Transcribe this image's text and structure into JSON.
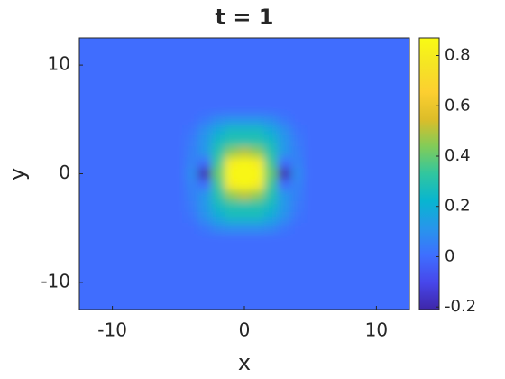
{
  "chart_data": {
    "type": "heatmap",
    "title": "t = 1",
    "x_label": "x",
    "y_label": "y",
    "x": [
      -11,
      -7,
      -5,
      -4,
      -3,
      -2,
      -1,
      0,
      1,
      2,
      3,
      4,
      5,
      7,
      11
    ],
    "y": [
      11,
      8,
      6,
      5,
      4,
      3,
      2,
      1,
      0,
      -1,
      -2,
      -3,
      -4,
      -5,
      -6,
      -8,
      -11
    ],
    "z": [
      [
        0,
        0,
        0,
        0,
        0,
        0,
        0,
        0,
        0,
        0,
        0,
        0,
        0,
        0,
        0
      ],
      [
        0,
        0,
        0,
        0,
        0,
        0,
        0,
        0,
        0,
        0,
        0,
        0,
        0,
        0,
        0
      ],
      [
        0,
        0,
        0,
        0,
        0,
        0,
        0,
        0,
        0,
        0,
        0,
        0,
        0,
        0,
        0
      ],
      [
        0,
        0,
        0,
        0,
        0.03,
        0.08,
        0.1,
        0.1,
        0.1,
        0.08,
        0.03,
        0,
        0,
        0,
        0
      ],
      [
        0,
        0,
        0,
        0.02,
        0.1,
        0.18,
        0.25,
        0.25,
        0.25,
        0.18,
        0.1,
        0.02,
        0,
        0,
        0
      ],
      [
        0,
        0,
        0,
        0.04,
        0.12,
        0.25,
        0.3,
        0.3,
        0.3,
        0.25,
        0.12,
        0.04,
        0,
        0,
        0
      ],
      [
        0,
        0,
        0,
        0.05,
        0.12,
        0.3,
        0.45,
        0.5,
        0.45,
        0.3,
        0.12,
        0.05,
        0,
        0,
        0
      ],
      [
        0,
        0,
        0,
        0.06,
        0,
        0.35,
        0.8,
        0.85,
        0.8,
        0.35,
        0,
        0.06,
        0,
        0,
        0
      ],
      [
        0,
        0,
        0,
        0.08,
        -0.2,
        0.4,
        0.85,
        0.85,
        0.85,
        0.4,
        -0.2,
        0.08,
        0,
        0,
        0
      ],
      [
        0,
        0,
        0,
        0.06,
        0,
        0.35,
        0.8,
        0.85,
        0.8,
        0.35,
        0,
        0.06,
        0,
        0,
        0
      ],
      [
        0,
        0,
        0,
        0.05,
        0.12,
        0.3,
        0.45,
        0.5,
        0.45,
        0.3,
        0.12,
        0.05,
        0,
        0,
        0
      ],
      [
        0,
        0,
        0,
        0.04,
        0.12,
        0.25,
        0.3,
        0.3,
        0.3,
        0.25,
        0.12,
        0.04,
        0,
        0,
        0
      ],
      [
        0,
        0,
        0,
        0.02,
        0.1,
        0.18,
        0.25,
        0.25,
        0.25,
        0.18,
        0.1,
        0.02,
        0,
        0,
        0
      ],
      [
        0,
        0,
        0,
        0,
        0.03,
        0.08,
        0.1,
        0.1,
        0.1,
        0.08,
        0.03,
        0,
        0,
        0,
        0
      ],
      [
        0,
        0,
        0,
        0,
        0,
        0,
        0,
        0,
        0,
        0,
        0,
        0,
        0,
        0,
        0
      ],
      [
        0,
        0,
        0,
        0,
        0,
        0,
        0,
        0,
        0,
        0,
        0,
        0,
        0,
        0,
        0
      ],
      [
        0,
        0,
        0,
        0,
        0,
        0,
        0,
        0,
        0,
        0,
        0,
        0,
        0,
        0,
        0
      ]
    ],
    "xlim": [
      -12.5,
      12.5
    ],
    "ylim": [
      -12.5,
      12.5
    ],
    "xticks": [
      -10,
      0,
      10
    ],
    "yticks": [
      -10,
      0,
      10
    ],
    "clim": [
      -0.21,
      0.87
    ],
    "cticks": [
      -0.2,
      0,
      0.2,
      0.4,
      0.6,
      0.8
    ],
    "colormap": [
      "#3e26a8",
      "#4747eb",
      "#3e6fff",
      "#2796eb",
      "#08b5d0",
      "#31c69f",
      "#81cc59",
      "#dcbd29",
      "#fccf30",
      "#f5e424",
      "#f9fb14"
    ]
  }
}
